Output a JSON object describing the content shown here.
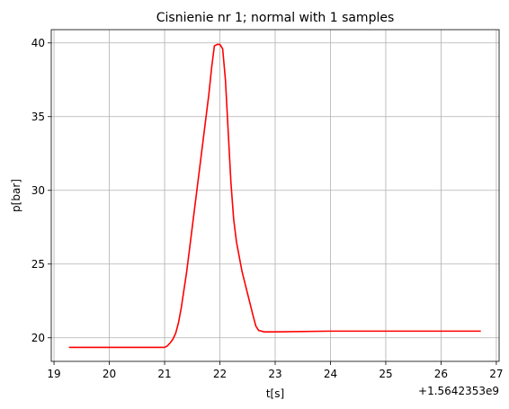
{
  "chart_data": {
    "type": "line",
    "title": "Cisnienie nr 1; normal with 1 samples",
    "xlabel": "t[s]",
    "ylabel": "p[bar]",
    "x_offset_label": "+1.5642353e9",
    "xlim": [
      18.95,
      27.05
    ],
    "ylim": [
      18.4,
      40.9
    ],
    "x_ticks": [
      19,
      20,
      21,
      22,
      23,
      24,
      25,
      26,
      27
    ],
    "x_tick_labels": [
      "19",
      "20",
      "21",
      "22",
      "23",
      "24",
      "25",
      "26",
      "27"
    ],
    "y_ticks": [
      20,
      25,
      30,
      35,
      40
    ],
    "y_tick_labels": [
      "20",
      "25",
      "30",
      "35",
      "40"
    ],
    "grid": true,
    "series": [
      {
        "color": "#ff0000",
        "x": [
          19.27,
          20.0,
          20.5,
          21.0,
          21.05,
          21.1,
          21.15,
          21.2,
          21.25,
          21.3,
          21.4,
          21.5,
          21.6,
          21.7,
          21.8,
          21.85,
          21.9,
          21.95,
          22.0,
          22.05,
          22.1,
          22.15,
          22.2,
          22.25,
          22.3,
          22.35,
          22.4,
          22.5,
          22.6,
          22.65,
          22.7,
          22.75,
          22.8,
          23.0,
          24.0,
          25.0,
          26.0,
          26.72
        ],
        "y": [
          19.35,
          19.35,
          19.35,
          19.35,
          19.45,
          19.65,
          19.9,
          20.3,
          21.0,
          22.0,
          24.5,
          27.5,
          30.5,
          33.5,
          36.5,
          38.3,
          39.8,
          39.9,
          39.9,
          39.6,
          37.5,
          34.0,
          30.5,
          28.0,
          26.5,
          25.5,
          24.5,
          23.0,
          21.5,
          20.8,
          20.5,
          20.45,
          20.4,
          20.4,
          20.45,
          20.45,
          20.45,
          20.45
        ]
      }
    ]
  }
}
